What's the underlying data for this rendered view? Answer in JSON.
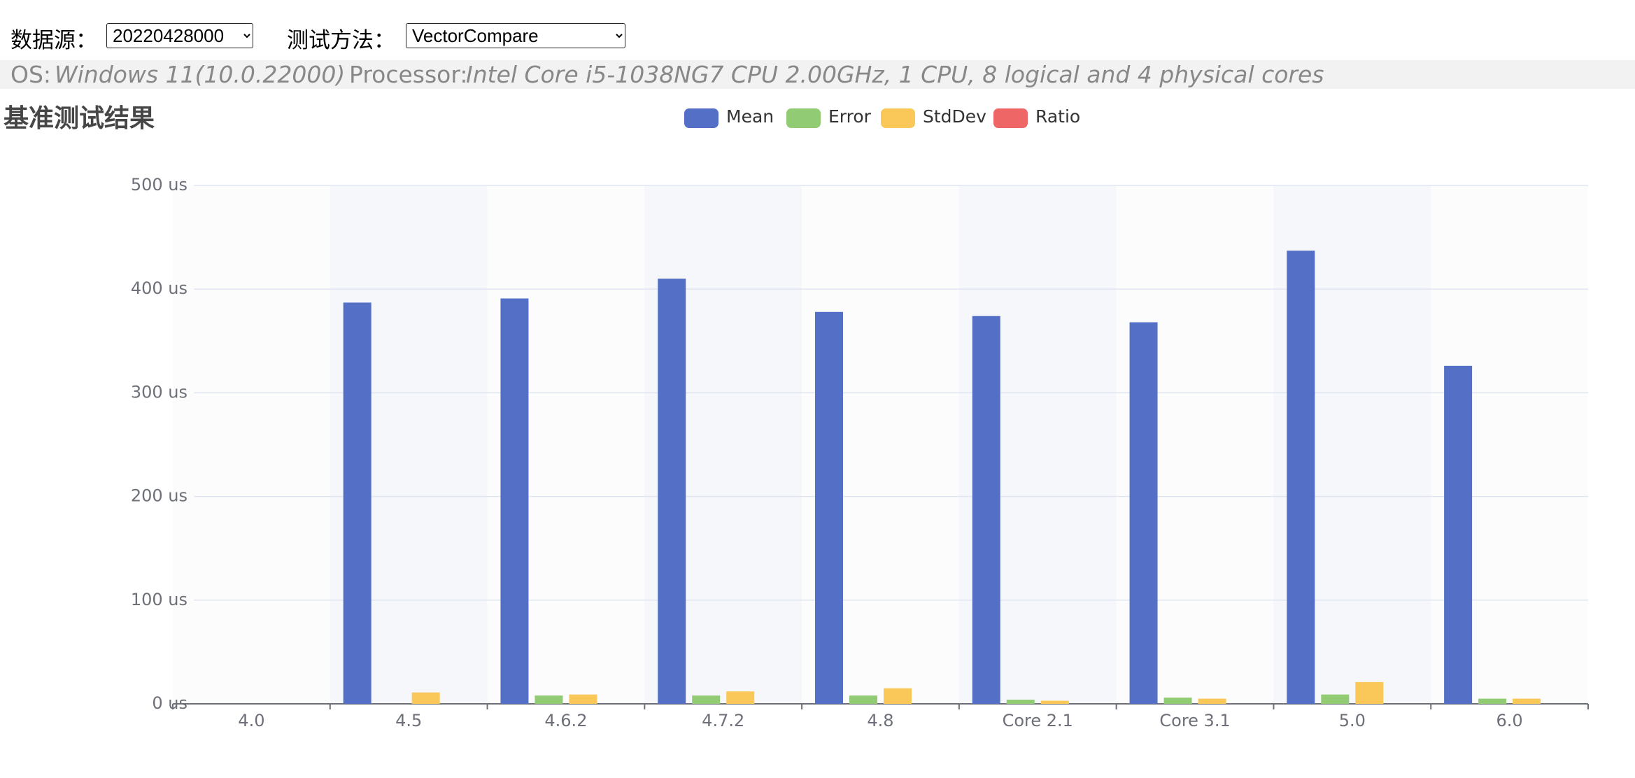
{
  "controls": {
    "datasource_label": "数据源：",
    "datasource_value": "20220428000",
    "method_label": "测试方法：",
    "method_value": "VectorCompare"
  },
  "info": {
    "os_label": "OS:",
    "os_value": "Windows 11(10.0.22000)",
    "processor_label": "Processor:",
    "processor_value": "Intel Core i5-1038NG7 CPU 2.00GHz, 1 CPU, 8 logical and 4 physical cores"
  },
  "chart_data": {
    "type": "bar",
    "title": "基准测试结果",
    "categories": [
      "4.0",
      "4.5",
      "4.6.2",
      "4.7.2",
      "4.8",
      "Core 2.1",
      "Core 3.1",
      "5.0",
      "6.0"
    ],
    "series": [
      {
        "name": "Mean",
        "color": "#5470c6",
        "values": [
          null,
          387,
          391,
          410,
          378,
          374,
          368,
          437,
          326
        ]
      },
      {
        "name": "Error",
        "color": "#91cc75",
        "values": [
          null,
          0,
          8,
          8,
          8,
          4,
          6,
          9,
          5
        ]
      },
      {
        "name": "StdDev",
        "color": "#fac858",
        "values": [
          null,
          11,
          9,
          12,
          15,
          3,
          5,
          21,
          5
        ]
      },
      {
        "name": "Ratio",
        "color": "#ee6666",
        "values": [
          null,
          0,
          0,
          0,
          0,
          0,
          0,
          0,
          0
        ]
      }
    ],
    "ylim": [
      0,
      500
    ],
    "yticks": [
      {
        "value": 0,
        "label": "0 us"
      },
      {
        "value": 100,
        "label": "100 us"
      },
      {
        "value": 200,
        "label": "200 us"
      },
      {
        "value": 300,
        "label": "300 us"
      },
      {
        "value": 400,
        "label": "400 us"
      },
      {
        "value": 500,
        "label": "500 us"
      }
    ],
    "grid": true
  }
}
